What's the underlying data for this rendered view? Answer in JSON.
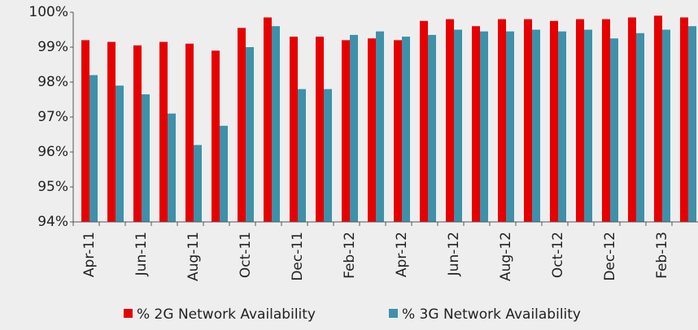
{
  "chart_data": {
    "type": "bar",
    "categories": [
      "Apr-11",
      null,
      "Jun-11",
      null,
      "Aug-11",
      null,
      "Oct-11",
      null,
      "Dec-11",
      null,
      "Feb-12",
      null,
      "Apr-12",
      null,
      "Jun-12",
      null,
      "Aug-12",
      null,
      "Oct-12",
      null,
      "Dec-12",
      null,
      "Feb-13",
      null
    ],
    "series": [
      {
        "name": "% 2G Network Availability",
        "color": "#e60000",
        "values": [
          99.2,
          99.15,
          99.05,
          99.15,
          99.1,
          98.9,
          99.55,
          99.85,
          99.3,
          99.3,
          99.2,
          99.25,
          99.2,
          99.75,
          99.8,
          99.6,
          99.8,
          99.8,
          99.75,
          99.8,
          99.8,
          99.85,
          99.9,
          99.85
        ]
      },
      {
        "name": "% 3G Network Availability",
        "color": "#3e91a9",
        "values": [
          98.2,
          97.9,
          97.65,
          97.1,
          96.2,
          96.75,
          99.0,
          99.6,
          97.8,
          97.8,
          99.35,
          99.45,
          99.3,
          99.35,
          99.5,
          99.45,
          99.45,
          99.5,
          99.45,
          99.5,
          99.25,
          99.4,
          99.5,
          99.6
        ]
      }
    ],
    "ylim": [
      94,
      100
    ],
    "yticks": [
      {
        "value": 94,
        "label": "94%"
      },
      {
        "value": 95,
        "label": "95%"
      },
      {
        "value": 96,
        "label": "96%"
      },
      {
        "value": 97,
        "label": "97%"
      },
      {
        "value": 98,
        "label": "98%"
      },
      {
        "value": 99,
        "label": "99%"
      },
      {
        "value": 100,
        "label": "100%"
      }
    ],
    "legend": "bottom"
  }
}
